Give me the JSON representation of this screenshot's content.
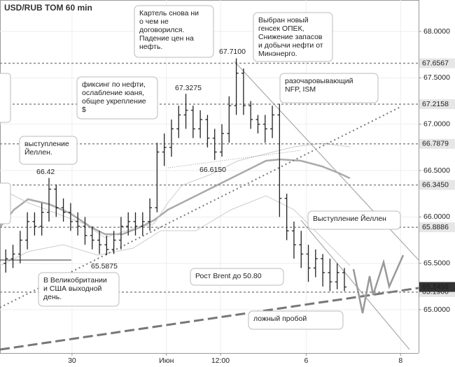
{
  "chart_data": {
    "type": "ohlc",
    "title": "USD/RUB TOM 60 min",
    "color": "#222222",
    "open": [
      65.5,
      65.55,
      65.6,
      65.75,
      65.95,
      65.9,
      66.05,
      66.3,
      66.1,
      66.05,
      65.95,
      65.9,
      65.8,
      65.75,
      65.7,
      65.65,
      65.75,
      65.9,
      65.95,
      65.9,
      65.95,
      66.1,
      66.7,
      66.75,
      66.95,
      67.1,
      67.15,
      66.95,
      67.05,
      66.85,
      66.7,
      66.9,
      67.2,
      67.55,
      67.2,
      67.05,
      67.0,
      66.95,
      67.1,
      66.2,
      65.85,
      65.7,
      65.6,
      65.45,
      65.55,
      65.4,
      65.3,
      65.4
    ],
    "high": [
      65.65,
      65.7,
      65.85,
      66.05,
      66.05,
      66.15,
      66.42,
      66.35,
      66.2,
      66.15,
      66.05,
      66.0,
      65.9,
      65.85,
      65.8,
      65.85,
      66.0,
      66.05,
      66.05,
      66.05,
      66.2,
      66.8,
      66.9,
      67.05,
      67.2,
      67.3275,
      67.2,
      67.15,
      67.1,
      66.95,
      67.0,
      67.3,
      67.71,
      67.6,
      67.25,
      67.1,
      67.1,
      67.2,
      67.22,
      66.25,
      65.95,
      65.85,
      65.7,
      65.65,
      65.6,
      65.55,
      65.5,
      65.45
    ],
    "low": [
      65.4,
      65.45,
      65.5,
      65.65,
      65.8,
      65.8,
      65.95,
      66.0,
      65.95,
      65.85,
      65.8,
      65.7,
      65.65,
      65.6,
      65.5875,
      65.6,
      65.65,
      65.8,
      65.8,
      65.8,
      65.85,
      66.05,
      66.55,
      66.65,
      66.85,
      66.95,
      66.85,
      66.85,
      66.75,
      66.615,
      66.65,
      66.8,
      67.1,
      67.1,
      66.95,
      66.9,
      66.8,
      66.85,
      66.0,
      65.75,
      65.55,
      65.45,
      65.3,
      65.35,
      65.25,
      65.2,
      65.22,
      65.2
    ],
    "close": [
      65.55,
      65.6,
      65.75,
      65.95,
      65.9,
      66.05,
      66.3,
      66.1,
      66.05,
      65.95,
      65.9,
      65.8,
      65.75,
      65.7,
      65.65,
      65.75,
      65.9,
      65.95,
      65.9,
      65.95,
      66.1,
      66.7,
      66.75,
      66.95,
      67.1,
      67.15,
      66.95,
      67.05,
      66.85,
      66.7,
      66.9,
      67.2,
      67.55,
      67.2,
      67.05,
      67.0,
      66.95,
      67.1,
      66.2,
      65.85,
      65.7,
      65.6,
      65.45,
      65.55,
      65.4,
      65.3,
      65.4,
      65.245
    ],
    "xlim": [
      -0.8,
      57.3
    ],
    "xticks": [
      {
        "value": 9.2,
        "label": "30"
      },
      {
        "value": 22.3,
        "label": "Июн"
      },
      {
        "value": 29.8,
        "label": "12:00"
      },
      {
        "value": 41.7,
        "label": "6"
      },
      {
        "value": 54.8,
        "label": "8"
      }
    ],
    "ylim": [
      64.533,
      68.339
    ],
    "yticks": [
      {
        "value": 65.0,
        "label": "65.0000"
      },
      {
        "value": 65.5,
        "label": "65.5000"
      },
      {
        "value": 66.0,
        "label": "66.0000"
      },
      {
        "value": 66.5,
        "label": "66.5000"
      },
      {
        "value": 67.0,
        "label": "67.0000"
      },
      {
        "value": 67.5,
        "label": "67.5000"
      },
      {
        "value": 68.0,
        "label": "68.0000"
      }
    ],
    "grid": true,
    "levels": [
      {
        "value": 67.6567,
        "label": "67.6567"
      },
      {
        "value": 67.2158,
        "label": "67.2158"
      },
      {
        "value": 66.7879,
        "label": "66.7879"
      },
      {
        "value": 66.345,
        "label": "66.3450"
      },
      {
        "value": 65.8886,
        "label": "65.8886"
      },
      {
        "value": 65.19,
        "label": "65.1900"
      }
    ],
    "last_price": {
      "value": 65.245,
      "label": "65.2450"
    },
    "price_labels": [
      "66.42",
      "67.3275",
      "67.7100",
      "66.6150",
      "65.5875"
    ],
    "annotations": [
      [
        "Картель снова ни",
        "о чем не",
        "договорился.",
        "Падение цен на",
        "нефть."
      ],
      [
        "Выбран новый",
        "генсек ОПЕК,",
        "Снижение запасов",
        "и добычи нефти от",
        "Минэнерго."
      ],
      [
        "фиксинг по нефти,",
        "ослабление юаня,",
        "общее укрепление",
        "$"
      ],
      [
        "разочаровывающий",
        "NFP, ISM"
      ],
      [
        "выступление",
        "Йеллен."
      ],
      [
        "Выступление Йеллен"
      ],
      [
        "Рост Brent до 50.80"
      ],
      [
        "В Великобритании",
        "и США выходной",
        "день."
      ],
      [
        "ложный пробой"
      ]
    ]
  }
}
